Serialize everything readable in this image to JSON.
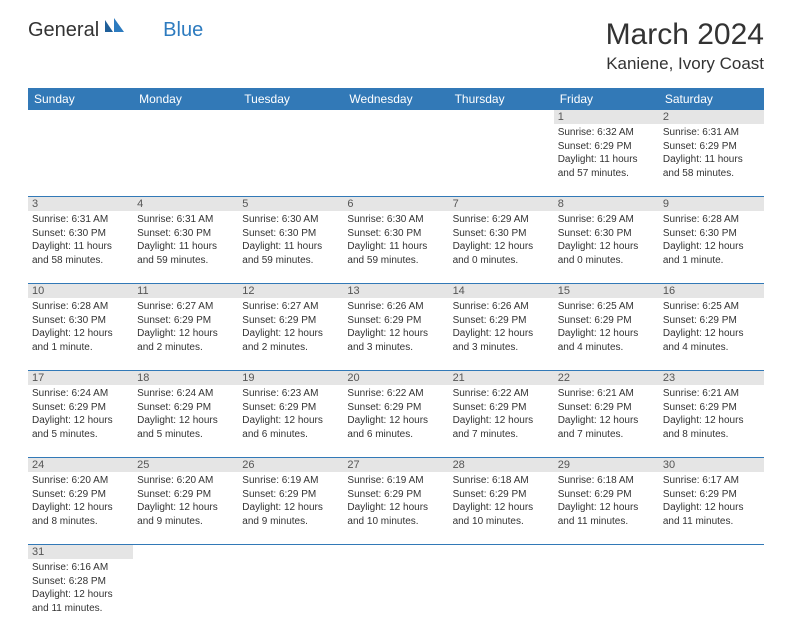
{
  "logo": {
    "general": "General",
    "blue": "Blue"
  },
  "header": {
    "month_title": "March 2024",
    "location": "Kaniene, Ivory Coast"
  },
  "colors": {
    "header_bg": "#3279b7",
    "header_text": "#ffffff",
    "daynum_bg": "#e5e5e5",
    "border": "#3279b7",
    "logo_blue": "#2d7bbf"
  },
  "weekdays": [
    "Sunday",
    "Monday",
    "Tuesday",
    "Wednesday",
    "Thursday",
    "Friday",
    "Saturday"
  ],
  "weeks": [
    [
      null,
      null,
      null,
      null,
      null,
      {
        "n": "1",
        "sr": "Sunrise: 6:32 AM",
        "ss": "Sunset: 6:29 PM",
        "dl": "Daylight: 11 hours and 57 minutes."
      },
      {
        "n": "2",
        "sr": "Sunrise: 6:31 AM",
        "ss": "Sunset: 6:29 PM",
        "dl": "Daylight: 11 hours and 58 minutes."
      }
    ],
    [
      {
        "n": "3",
        "sr": "Sunrise: 6:31 AM",
        "ss": "Sunset: 6:30 PM",
        "dl": "Daylight: 11 hours and 58 minutes."
      },
      {
        "n": "4",
        "sr": "Sunrise: 6:31 AM",
        "ss": "Sunset: 6:30 PM",
        "dl": "Daylight: 11 hours and 59 minutes."
      },
      {
        "n": "5",
        "sr": "Sunrise: 6:30 AM",
        "ss": "Sunset: 6:30 PM",
        "dl": "Daylight: 11 hours and 59 minutes."
      },
      {
        "n": "6",
        "sr": "Sunrise: 6:30 AM",
        "ss": "Sunset: 6:30 PM",
        "dl": "Daylight: 11 hours and 59 minutes."
      },
      {
        "n": "7",
        "sr": "Sunrise: 6:29 AM",
        "ss": "Sunset: 6:30 PM",
        "dl": "Daylight: 12 hours and 0 minutes."
      },
      {
        "n": "8",
        "sr": "Sunrise: 6:29 AM",
        "ss": "Sunset: 6:30 PM",
        "dl": "Daylight: 12 hours and 0 minutes."
      },
      {
        "n": "9",
        "sr": "Sunrise: 6:28 AM",
        "ss": "Sunset: 6:30 PM",
        "dl": "Daylight: 12 hours and 1 minute."
      }
    ],
    [
      {
        "n": "10",
        "sr": "Sunrise: 6:28 AM",
        "ss": "Sunset: 6:30 PM",
        "dl": "Daylight: 12 hours and 1 minute."
      },
      {
        "n": "11",
        "sr": "Sunrise: 6:27 AM",
        "ss": "Sunset: 6:29 PM",
        "dl": "Daylight: 12 hours and 2 minutes."
      },
      {
        "n": "12",
        "sr": "Sunrise: 6:27 AM",
        "ss": "Sunset: 6:29 PM",
        "dl": "Daylight: 12 hours and 2 minutes."
      },
      {
        "n": "13",
        "sr": "Sunrise: 6:26 AM",
        "ss": "Sunset: 6:29 PM",
        "dl": "Daylight: 12 hours and 3 minutes."
      },
      {
        "n": "14",
        "sr": "Sunrise: 6:26 AM",
        "ss": "Sunset: 6:29 PM",
        "dl": "Daylight: 12 hours and 3 minutes."
      },
      {
        "n": "15",
        "sr": "Sunrise: 6:25 AM",
        "ss": "Sunset: 6:29 PM",
        "dl": "Daylight: 12 hours and 4 minutes."
      },
      {
        "n": "16",
        "sr": "Sunrise: 6:25 AM",
        "ss": "Sunset: 6:29 PM",
        "dl": "Daylight: 12 hours and 4 minutes."
      }
    ],
    [
      {
        "n": "17",
        "sr": "Sunrise: 6:24 AM",
        "ss": "Sunset: 6:29 PM",
        "dl": "Daylight: 12 hours and 5 minutes."
      },
      {
        "n": "18",
        "sr": "Sunrise: 6:24 AM",
        "ss": "Sunset: 6:29 PM",
        "dl": "Daylight: 12 hours and 5 minutes."
      },
      {
        "n": "19",
        "sr": "Sunrise: 6:23 AM",
        "ss": "Sunset: 6:29 PM",
        "dl": "Daylight: 12 hours and 6 minutes."
      },
      {
        "n": "20",
        "sr": "Sunrise: 6:22 AM",
        "ss": "Sunset: 6:29 PM",
        "dl": "Daylight: 12 hours and 6 minutes."
      },
      {
        "n": "21",
        "sr": "Sunrise: 6:22 AM",
        "ss": "Sunset: 6:29 PM",
        "dl": "Daylight: 12 hours and 7 minutes."
      },
      {
        "n": "22",
        "sr": "Sunrise: 6:21 AM",
        "ss": "Sunset: 6:29 PM",
        "dl": "Daylight: 12 hours and 7 minutes."
      },
      {
        "n": "23",
        "sr": "Sunrise: 6:21 AM",
        "ss": "Sunset: 6:29 PM",
        "dl": "Daylight: 12 hours and 8 minutes."
      }
    ],
    [
      {
        "n": "24",
        "sr": "Sunrise: 6:20 AM",
        "ss": "Sunset: 6:29 PM",
        "dl": "Daylight: 12 hours and 8 minutes."
      },
      {
        "n": "25",
        "sr": "Sunrise: 6:20 AM",
        "ss": "Sunset: 6:29 PM",
        "dl": "Daylight: 12 hours and 9 minutes."
      },
      {
        "n": "26",
        "sr": "Sunrise: 6:19 AM",
        "ss": "Sunset: 6:29 PM",
        "dl": "Daylight: 12 hours and 9 minutes."
      },
      {
        "n": "27",
        "sr": "Sunrise: 6:19 AM",
        "ss": "Sunset: 6:29 PM",
        "dl": "Daylight: 12 hours and 10 minutes."
      },
      {
        "n": "28",
        "sr": "Sunrise: 6:18 AM",
        "ss": "Sunset: 6:29 PM",
        "dl": "Daylight: 12 hours and 10 minutes."
      },
      {
        "n": "29",
        "sr": "Sunrise: 6:18 AM",
        "ss": "Sunset: 6:29 PM",
        "dl": "Daylight: 12 hours and 11 minutes."
      },
      {
        "n": "30",
        "sr": "Sunrise: 6:17 AM",
        "ss": "Sunset: 6:29 PM",
        "dl": "Daylight: 12 hours and 11 minutes."
      }
    ],
    [
      {
        "n": "31",
        "sr": "Sunrise: 6:16 AM",
        "ss": "Sunset: 6:28 PM",
        "dl": "Daylight: 12 hours and 11 minutes."
      },
      null,
      null,
      null,
      null,
      null,
      null
    ]
  ]
}
